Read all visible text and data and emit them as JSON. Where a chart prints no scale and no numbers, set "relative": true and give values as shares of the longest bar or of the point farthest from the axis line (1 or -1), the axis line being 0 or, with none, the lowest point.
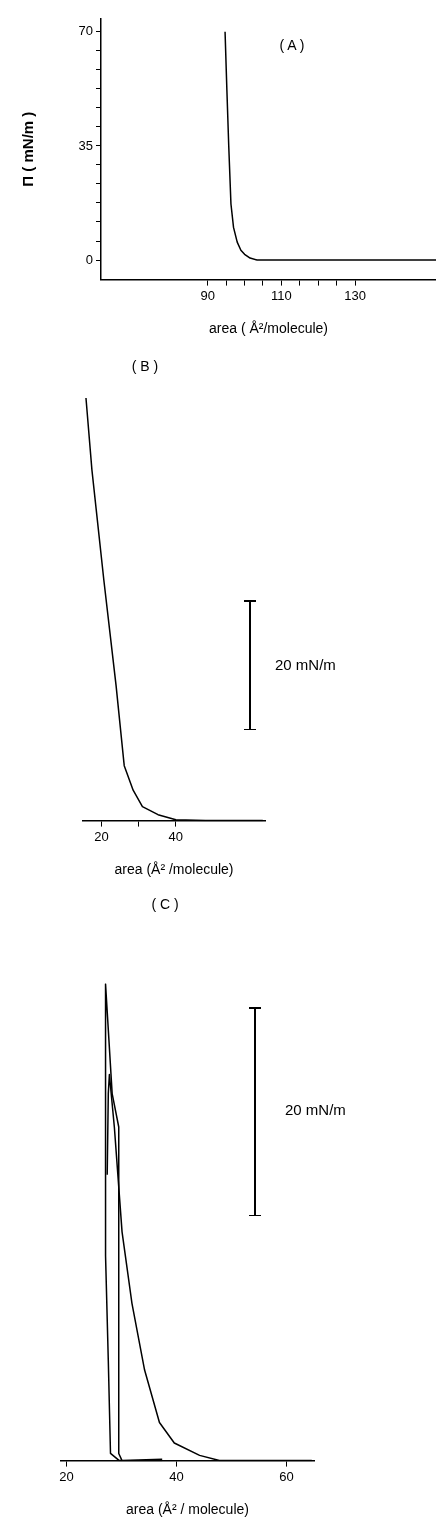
{
  "chart_data": [
    {
      "type": "line",
      "title": "( A )",
      "xlabel": "area ( Å²/molecule)",
      "ylabel": "Π ( mN/m )",
      "xlim": [
        61,
        152
      ],
      "ylim": [
        -6,
        74
      ],
      "xticks": [
        90,
        {
          "value": 95,
          "label": null
        },
        {
          "value": 100,
          "label": null
        },
        {
          "value": 105,
          "label": null
        },
        110,
        {
          "value": 115,
          "label": null
        },
        {
          "value": 120,
          "label": null
        },
        {
          "value": 125,
          "label": null
        },
        130
      ],
      "yticks": [
        0,
        {
          "value": 5.83,
          "label": null
        },
        {
          "value": 11.67,
          "label": null
        },
        {
          "value": 17.5,
          "label": null
        },
        {
          "value": 23.33,
          "label": null
        },
        {
          "value": 29.17,
          "label": null
        },
        35,
        {
          "value": 40.83,
          "label": null
        },
        {
          "value": 46.67,
          "label": null
        },
        {
          "value": 52.5,
          "label": null
        },
        {
          "value": 58.33,
          "label": null
        },
        {
          "value": 64.17,
          "label": null
        },
        70
      ],
      "grid": false,
      "legend": false,
      "marker": "none",
      "line_style": "solid",
      "series": [
        {
          "color": "#000000",
          "x": [
            94.7,
            95.2,
            95.7,
            96.3,
            97,
            98,
            99,
            100,
            101.5,
            103.4,
            110,
            152
          ],
          "values": [
            70,
            52,
            35,
            17.2,
            10,
            5.5,
            3,
            1.75,
            0.6,
            0,
            0,
            0
          ]
        }
      ]
    },
    {
      "type": "line",
      "title": "( B )",
      "xlabel": "area (Å² /molecule)",
      "relative": true,
      "xlim": [
        15,
        64
      ],
      "xticks": [
        20,
        {
          "value": 30,
          "label": null
        },
        40
      ],
      "annotations": [
        "20 mN/m"
      ],
      "grid": false,
      "legend": false,
      "marker": "none",
      "line_style": "solid",
      "series": [
        {
          "color": "#000000",
          "x": [
            15.8,
            17.4,
            20.6,
            23.9,
            26.1,
            28.5,
            31,
            35.2,
            40,
            48,
            63.4
          ],
          "values": [
            1,
            0.83,
            0.57,
            0.32,
            0.13,
            0.072,
            0.033,
            0.014,
            0.002,
            0,
            0
          ]
        }
      ]
    },
    {
      "type": "line",
      "title": "( C )",
      "xlabel": "area (Å² / molecule)",
      "relative": true,
      "xlim": [
        19,
        65
      ],
      "xticks": [
        20,
        40,
        60
      ],
      "annotations": [
        "20 mN/m"
      ],
      "grid": false,
      "legend": false,
      "marker": "none",
      "line_style": "solid",
      "series": [
        {
          "color": "#000000",
          "x": [
            37.4,
            30.1,
            29.5,
            29.5,
            28.3,
            27.1,
            27.1,
            27.6,
            28,
            29.6,
            37.4
          ],
          "values": [
            0.003,
            0,
            0.015,
            0.7,
            0.77,
            1,
            0.43,
            0.21,
            0.015,
            0,
            0
          ]
        },
        {
          "color": "#000000",
          "x": [
            27.4,
            27.6,
            27.8,
            28.7,
            30.1,
            31.9,
            34.2,
            36.9,
            39.6,
            44.2,
            47.8,
            64.6
          ],
          "values": [
            0.6,
            0.77,
            0.81,
            0.7,
            0.48,
            0.33,
            0.19,
            0.08,
            0.037,
            0.011,
            0,
            0
          ]
        }
      ]
    }
  ]
}
